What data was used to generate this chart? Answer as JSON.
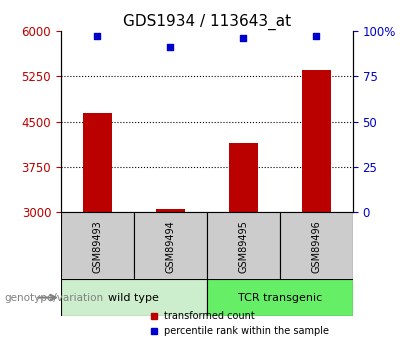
{
  "title": "GDS1934 / 113643_at",
  "samples": [
    "GSM89493",
    "GSM89494",
    "GSM89495",
    "GSM89496"
  ],
  "red_bars": [
    4650,
    3055,
    4150,
    5350
  ],
  "blue_dots": [
    97,
    91,
    96,
    97
  ],
  "ylim_left": [
    3000,
    6000
  ],
  "ylim_right": [
    0,
    100
  ],
  "left_ticks": [
    3000,
    3750,
    4500,
    5250,
    6000
  ],
  "right_ticks": [
    0,
    25,
    50,
    75,
    100
  ],
  "right_tick_labels": [
    "0",
    "25",
    "50",
    "75",
    "100%"
  ],
  "bar_color": "#bb0000",
  "dot_color": "#0000cc",
  "groups": [
    {
      "label": "wild type",
      "indices": [
        0,
        1
      ],
      "color": "#cceecc"
    },
    {
      "label": "TCR transgenic",
      "indices": [
        2,
        3
      ],
      "color": "#66ee66"
    }
  ],
  "genotype_label": "genotype/variation",
  "legend_red": "transformed count",
  "legend_blue": "percentile rank within the sample",
  "tick_area_bg": "#cccccc",
  "bar_width": 0.4,
  "title_fontsize": 11,
  "tick_fontsize": 8.5
}
